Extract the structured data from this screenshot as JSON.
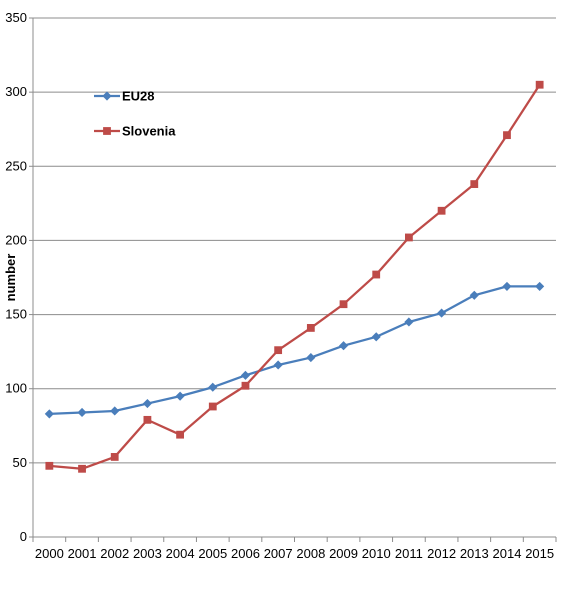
{
  "chart_data": {
    "type": "line",
    "categories": [
      "2000",
      "2001",
      "2002",
      "2003",
      "2004",
      "2005",
      "2006",
      "2007",
      "2008",
      "2009",
      "2010",
      "2011",
      "2012",
      "2013",
      "2014",
      "2015"
    ],
    "series": [
      {
        "name": "EU28",
        "color": "#4a7ebb",
        "marker": "diamond",
        "values": [
          83,
          84,
          85,
          90,
          95,
          101,
          109,
          116,
          121,
          129,
          135,
          145,
          151,
          163,
          169,
          169
        ]
      },
      {
        "name": "Slovenia",
        "color": "#be4b48",
        "marker": "square",
        "values": [
          48,
          46,
          54,
          79,
          69,
          88,
          102,
          126,
          141,
          157,
          177,
          202,
          220,
          238,
          271,
          305
        ]
      }
    ],
    "xlabel": "",
    "ylabel": "number",
    "ylim": [
      0,
      350
    ],
    "yticks": [
      0,
      50,
      100,
      150,
      200,
      250,
      300,
      350
    ],
    "grid": "horizontal",
    "legend_position": "top-left"
  }
}
